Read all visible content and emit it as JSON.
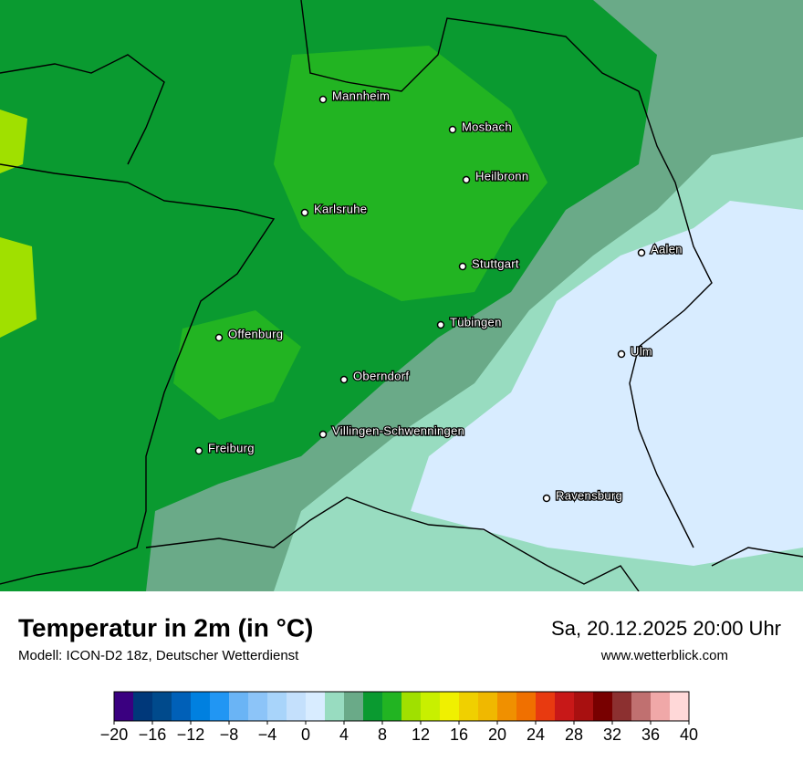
{
  "header": {
    "title": "Temperatur in 2m (in °C)",
    "subtitle": "Modell: ICON-D2 18z, Deutscher Wetterdienst",
    "datetime": "Sa, 20.12.2025 20:00 Uhr",
    "website": "www.wetterblick.com"
  },
  "cities": [
    "Mannheim",
    "Mosbach",
    "Heilbronn",
    "Karlsruhe",
    "Aalen",
    "Stuttgart",
    "Tübingen",
    "Ulm",
    "Offenburg",
    "Oberndorf",
    "Villingen-Schwenningen",
    "Freiburg",
    "Ravensburg"
  ],
  "colorbar": {
    "min": -20,
    "max": 40,
    "colors": [
      "#3a0080",
      "#00387a",
      "#004a8c",
      "#0060b8",
      "#0080e0",
      "#2196f3",
      "#6ab4f5",
      "#8cc4f8",
      "#a8d4fa",
      "#c4e0fc",
      "#d8ecff",
      "#98dcc0",
      "#6aaa88",
      "#0a9a30",
      "#22b422",
      "#a0e000",
      "#c8f000",
      "#f0f000",
      "#f0d000",
      "#f0b800",
      "#f09000",
      "#f07000",
      "#e83a10",
      "#c81818",
      "#a81010",
      "#780000",
      "#8c3030",
      "#c07070",
      "#f0a8a8",
      "#ffd8d8"
    ],
    "ticks": [
      {
        "value": -20,
        "label": "−20"
      },
      {
        "value": -16,
        "label": "−16"
      },
      {
        "value": -12,
        "label": "−12"
      },
      {
        "value": -8,
        "label": "−8"
      },
      {
        "value": -4,
        "label": "−4"
      },
      0,
      4,
      8,
      12,
      16,
      20,
      24,
      28,
      32,
      36,
      40
    ]
  }
}
